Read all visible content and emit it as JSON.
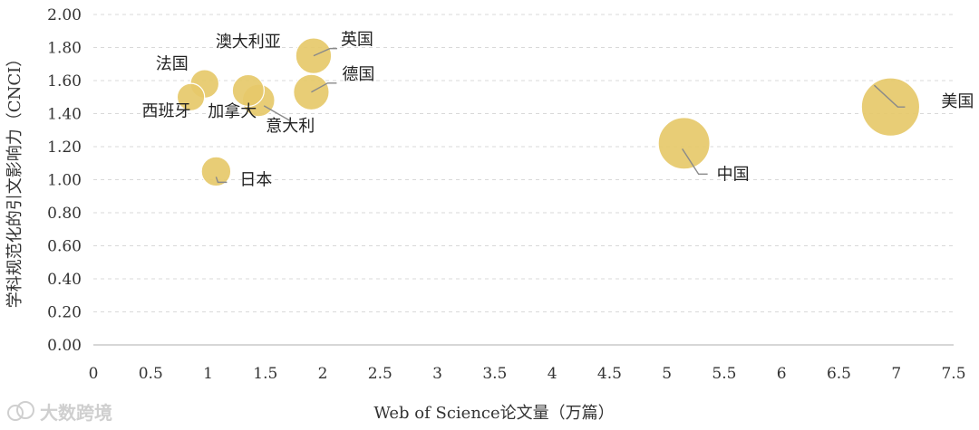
{
  "chart_data": {
    "type": "bubble",
    "title": "",
    "xlabel": "Web of Science论文量（万篇）",
    "ylabel": "学科规范化的引文影响力（CNCI）",
    "xlim": [
      0,
      7.5
    ],
    "ylim": [
      0,
      2.0
    ],
    "x_ticks": [
      "0",
      "0.5",
      "1",
      "1.5",
      "2",
      "2.5",
      "3",
      "3.5",
      "4",
      "4.5",
      "5",
      "5.5",
      "6",
      "6.5",
      "7",
      "7.5"
    ],
    "y_ticks": [
      "0.00",
      "0.20",
      "0.40",
      "0.60",
      "0.80",
      "1.00",
      "1.20",
      "1.40",
      "1.60",
      "1.80",
      "2.00"
    ],
    "grid": "horizontal-dashed",
    "bubble_color": "#E6C96A",
    "points": [
      {
        "label": "美国",
        "x": 6.95,
        "y": 1.44
      },
      {
        "label": "中国",
        "x": 5.15,
        "y": 1.22
      },
      {
        "label": "英国",
        "x": 1.92,
        "y": 1.75
      },
      {
        "label": "德国",
        "x": 1.9,
        "y": 1.53
      },
      {
        "label": "澳大利亚",
        "x": 1.35,
        "y": 1.54
      },
      {
        "label": "意大利",
        "x": 1.44,
        "y": 1.48
      },
      {
        "label": "加拿大",
        "x": 1.44,
        "y": 1.48
      },
      {
        "label": "法国",
        "x": 0.97,
        "y": 1.58
      },
      {
        "label": "西班牙",
        "x": 0.85,
        "y": 1.5
      },
      {
        "label": "日本",
        "x": 1.07,
        "y": 1.05
      }
    ]
  },
  "watermark": {
    "text": "大数跨境"
  }
}
